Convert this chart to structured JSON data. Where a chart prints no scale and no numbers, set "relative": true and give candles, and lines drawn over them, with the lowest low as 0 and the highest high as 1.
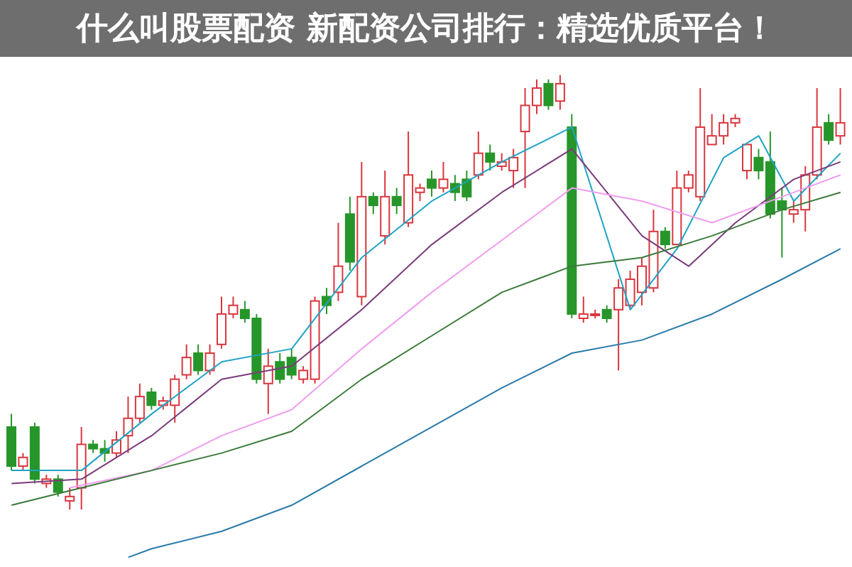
{
  "chart_data": {
    "type": "candlestick",
    "title": "什么叫股票配资 新配资公司排行：精选优质平台！",
    "relative": true,
    "categories": [
      null,
      null,
      null,
      null,
      null,
      null,
      null,
      null,
      null,
      null,
      null,
      null,
      null,
      null,
      null,
      null,
      null,
      null,
      null,
      null,
      null,
      null,
      null,
      null,
      null,
      null,
      null,
      null,
      null,
      null,
      null,
      null,
      null,
      null,
      null,
      null,
      null,
      null,
      null,
      null,
      null,
      null,
      null,
      null,
      null,
      null,
      null,
      null,
      null,
      null,
      null,
      null,
      null,
      null,
      null,
      null,
      null,
      null,
      null,
      null,
      null,
      null,
      null,
      null,
      null,
      null,
      null,
      null,
      null,
      null,
      null,
      null
    ],
    "ohlc": [
      [
        0.19,
        0.22,
        0.09,
        0.1
      ],
      [
        0.1,
        0.13,
        0.09,
        0.12
      ],
      [
        0.19,
        0.2,
        0.06,
        0.07
      ],
      [
        0.06,
        0.08,
        0.05,
        0.07
      ],
      [
        0.07,
        0.08,
        0.03,
        0.04
      ],
      [
        0.02,
        0.05,
        0,
        0.03
      ],
      [
        0.05,
        0.19,
        0.0,
        0.15
      ],
      [
        0.15,
        0.16,
        0.13,
        0.14
      ],
      [
        0.14,
        0.16,
        0.11,
        0.13
      ],
      [
        0.13,
        0.18,
        0.12,
        0.16
      ],
      [
        0.17,
        0.26,
        0.13,
        0.21
      ],
      [
        0.21,
        0.29,
        0.2,
        0.26
      ],
      [
        0.27,
        0.28,
        0.23,
        0.24
      ],
      [
        0.24,
        0.26,
        0.23,
        0.25
      ],
      [
        0.24,
        0.31,
        0.2,
        0.3
      ],
      [
        0.31,
        0.38,
        0.3,
        0.35
      ],
      [
        0.36,
        0.38,
        0.31,
        0.32
      ],
      [
        0.32,
        0.38,
        0.31,
        0.36
      ],
      [
        0.38,
        0.49,
        0.37,
        0.45
      ],
      [
        0.45,
        0.49,
        0.44,
        0.47
      ],
      [
        0.46,
        0.48,
        0.43,
        0.44
      ],
      [
        0.44,
        0.45,
        0.29,
        0.3
      ],
      [
        0.29,
        0.37,
        0.22,
        0.33
      ],
      [
        0.34,
        0.36,
        0.29,
        0.3
      ],
      [
        0.35,
        0.37,
        0.3,
        0.31
      ],
      [
        0.3,
        0.33,
        0.29,
        0.32
      ],
      [
        0.3,
        0.49,
        0.29,
        0.48
      ],
      [
        0.49,
        0.51,
        0.45,
        0.47
      ],
      [
        0.5,
        0.66,
        0.48,
        0.56
      ],
      [
        0.68,
        0.72,
        0.55,
        0.57
      ],
      [
        0.49,
        0.8,
        0.47,
        0.72
      ],
      [
        0.72,
        0.73,
        0.68,
        0.7
      ],
      [
        0.63,
        0.78,
        0.61,
        0.72
      ],
      [
        0.72,
        0.74,
        0.68,
        0.7
      ],
      [
        0.66,
        0.87,
        0.65,
        0.77
      ],
      [
        0.73,
        0.75,
        0.71,
        0.74
      ],
      [
        0.76,
        0.78,
        0.72,
        0.74
      ],
      [
        0.74,
        0.8,
        0.73,
        0.76
      ],
      [
        0.75,
        0.77,
        0.71,
        0.73
      ],
      [
        0.76,
        0.78,
        0.71,
        0.72
      ],
      [
        0.77,
        0.87,
        0.76,
        0.82
      ],
      [
        0.82,
        0.84,
        0.78,
        0.8
      ],
      [
        0.79,
        0.82,
        0.78,
        0.8
      ],
      [
        0.78,
        0.83,
        0.74,
        0.81
      ],
      [
        0.87,
        0.97,
        0.74,
        0.93
      ],
      [
        0.93,
        0.99,
        0.91,
        0.97
      ],
      [
        0.98,
        0.99,
        0.92,
        0.93
      ],
      [
        0.94,
        1,
        0.92,
        0.98
      ],
      [
        0.88,
        0.91,
        0.44,
        0.45
      ],
      [
        0.44,
        0.49,
        0.43,
        0.45
      ],
      [
        0.45,
        0.46,
        0.44,
        0.45
      ],
      [
        0.46,
        0.47,
        0.43,
        0.44
      ],
      [
        0.46,
        0.53,
        0.32,
        0.51
      ],
      [
        0.47,
        0.55,
        0.46,
        0.53
      ],
      [
        0.5,
        0.58,
        0.47,
        0.56
      ],
      [
        0.51,
        0.69,
        0.5,
        0.64
      ],
      [
        0.64,
        0.65,
        0.6,
        0.61
      ],
      [
        0.61,
        0.78,
        0.61,
        0.74
      ],
      [
        0.74,
        0.78,
        0.73,
        0.77
      ],
      [
        0.72,
        0.97,
        0.71,
        0.88
      ],
      [
        0.84,
        0.91,
        0.84,
        0.86
      ],
      [
        0.86,
        0.91,
        0.84,
        0.89
      ],
      [
        0.89,
        0.91,
        0.88,
        0.9
      ],
      [
        0.78,
        0.84,
        0.76,
        0.84
      ],
      [
        0.81,
        0.83,
        0.76,
        0.78
      ],
      [
        0.8,
        0.87,
        0.67,
        0.68
      ],
      [
        0.71,
        0.74,
        0.58,
        0.69
      ],
      [
        0.68,
        0.71,
        0.66,
        0.69
      ],
      [
        0.69,
        0.79,
        0.64,
        0.77
      ],
      [
        0.77,
        0.97,
        0.76,
        0.88
      ],
      [
        0.89,
        0.91,
        0.84,
        0.85
      ],
      [
        0.86,
        0.97,
        0.84,
        0.89
      ]
    ],
    "series": [
      {
        "type": "line",
        "color": "#1fa3c4",
        "values": [
          0.09,
          null,
          null,
          null,
          null,
          null,
          0.09,
          null,
          null,
          null,
          null,
          null,
          0.22,
          null,
          null,
          null,
          null,
          null,
          0.34,
          null,
          null,
          null,
          null,
          null,
          0.37,
          null,
          null,
          null,
          null,
          null,
          0.58,
          null,
          null,
          null,
          null,
          null,
          0.71,
          null,
          null,
          null,
          null,
          null,
          0.8,
          null,
          null,
          null,
          null,
          null,
          0.88,
          null,
          null,
          null,
          null,
          0.46,
          null,
          null,
          null,
          0.6,
          null,
          null,
          null,
          0.81,
          null,
          null,
          0.86,
          null,
          null,
          0.71,
          null,
          null,
          null,
          0.82
        ]
      },
      {
        "type": "line",
        "color": "#7b3b7b",
        "values": [
          0.06,
          null,
          null,
          null,
          null,
          null,
          0.07,
          null,
          null,
          null,
          null,
          null,
          0.17,
          null,
          null,
          null,
          null,
          null,
          0.3,
          null,
          null,
          null,
          null,
          null,
          0.33,
          null,
          null,
          null,
          null,
          null,
          0.46,
          null,
          null,
          null,
          null,
          null,
          0.61,
          null,
          null,
          null,
          null,
          null,
          0.73,
          null,
          null,
          null,
          null,
          null,
          0.83,
          null,
          null,
          null,
          null,
          null,
          0.63,
          null,
          null,
          null,
          0.56,
          null,
          null,
          null,
          0.66,
          null,
          null,
          null,
          null,
          0.76,
          null,
          null,
          null,
          0.8
        ]
      },
      {
        "type": "line",
        "color": "#f09ef0",
        "values": [
          null,
          null,
          null,
          null,
          null,
          0.05,
          null,
          null,
          null,
          null,
          null,
          null,
          0.09,
          null,
          null,
          null,
          null,
          null,
          0.17,
          null,
          null,
          null,
          null,
          null,
          0.23,
          null,
          null,
          null,
          null,
          null,
          0.37,
          null,
          null,
          null,
          null,
          null,
          0.5,
          null,
          null,
          null,
          null,
          null,
          0.62,
          null,
          null,
          null,
          null,
          null,
          0.74,
          null,
          null,
          null,
          null,
          null,
          0.71,
          null,
          null,
          null,
          null,
          null,
          0.66,
          null,
          null,
          null,
          null,
          null,
          0.72,
          null,
          null,
          null,
          null,
          0.77
        ]
      },
      {
        "type": "line",
        "color": "#3b7a3b",
        "values": [
          0.01,
          null,
          null,
          null,
          null,
          null,
          0.05,
          null,
          null,
          null,
          null,
          null,
          0.09,
          null,
          null,
          null,
          null,
          null,
          0.13,
          null,
          null,
          null,
          null,
          null,
          0.18,
          null,
          null,
          null,
          null,
          null,
          0.3,
          null,
          null,
          null,
          null,
          null,
          0.4,
          null,
          null,
          null,
          null,
          null,
          0.5,
          null,
          null,
          null,
          null,
          null,
          0.56,
          null,
          null,
          null,
          null,
          null,
          0.58,
          null,
          null,
          null,
          null,
          null,
          0.63,
          null,
          null,
          null,
          null,
          null,
          0.69,
          null,
          null,
          null,
          null,
          0.73
        ]
      },
      {
        "type": "line",
        "color": "#2a7aa8",
        "values": [
          null,
          null,
          null,
          null,
          null,
          null,
          null,
          null,
          null,
          null,
          -0.11,
          null,
          -0.09,
          null,
          null,
          null,
          null,
          null,
          -0.05,
          null,
          null,
          null,
          null,
          null,
          0.01,
          null,
          null,
          null,
          null,
          null,
          0.1,
          null,
          null,
          null,
          null,
          null,
          0.19,
          null,
          null,
          null,
          null,
          null,
          0.28,
          null,
          null,
          null,
          null,
          null,
          0.36,
          null,
          null,
          null,
          null,
          null,
          0.39,
          null,
          null,
          null,
          null,
          null,
          0.45,
          null,
          null,
          null,
          null,
          null,
          0.53,
          null,
          null,
          null,
          null,
          0.6
        ]
      }
    ]
  }
}
